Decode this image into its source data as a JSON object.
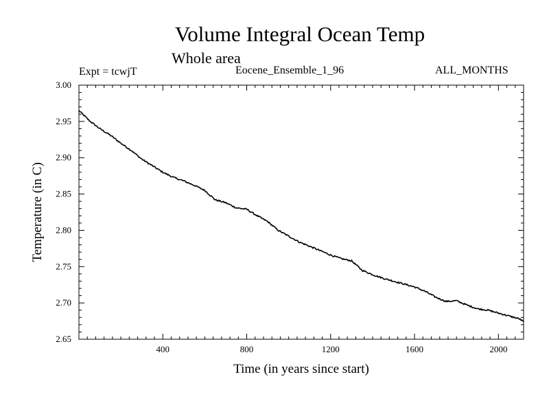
{
  "header": {
    "title": "Volume Integral Ocean Temp",
    "subtitle": "Whole area",
    "expt": "Expt = tcwjT",
    "ensemble": "Eocene_Ensemble_1_96",
    "months": "ALL_MONTHS"
  },
  "chart_data": {
    "type": "line",
    "title": "Volume Integral Ocean Temp",
    "subtitle": "Whole area",
    "xlabel": "Time (in years since start)",
    "ylabel": "Temperature (in C)",
    "xlim": [
      0,
      2120
    ],
    "ylim": [
      2.65,
      3.0
    ],
    "x_ticks": [
      400,
      800,
      1200,
      1600,
      2000
    ],
    "y_ticks": [
      "2.65",
      "2.70",
      "2.75",
      "2.80",
      "2.85",
      "2.90",
      "2.95",
      "3.00"
    ],
    "grid": false,
    "series": [
      {
        "x": [
          0,
          50,
          100,
          150,
          200,
          250,
          300,
          350,
          400,
          450,
          500,
          550,
          600,
          650,
          700,
          750,
          800,
          850,
          900,
          950,
          1000,
          1050,
          1100,
          1150,
          1200,
          1250,
          1300,
          1350,
          1400,
          1450,
          1500,
          1550,
          1600,
          1650,
          1700,
          1750,
          1800,
          1850,
          1900,
          1950,
          2000,
          2050,
          2100,
          2120
        ],
        "y": [
          2.965,
          2.951,
          2.94,
          2.931,
          2.92,
          2.91,
          2.898,
          2.889,
          2.88,
          2.873,
          2.868,
          2.862,
          2.855,
          2.842,
          2.838,
          2.831,
          2.829,
          2.82,
          2.812,
          2.8,
          2.792,
          2.784,
          2.778,
          2.772,
          2.766,
          2.761,
          2.758,
          2.745,
          2.739,
          2.734,
          2.73,
          2.726,
          2.722,
          2.716,
          2.708,
          2.702,
          2.703,
          2.697,
          2.692,
          2.69,
          2.686,
          2.682,
          2.678,
          2.674
        ]
      }
    ]
  }
}
